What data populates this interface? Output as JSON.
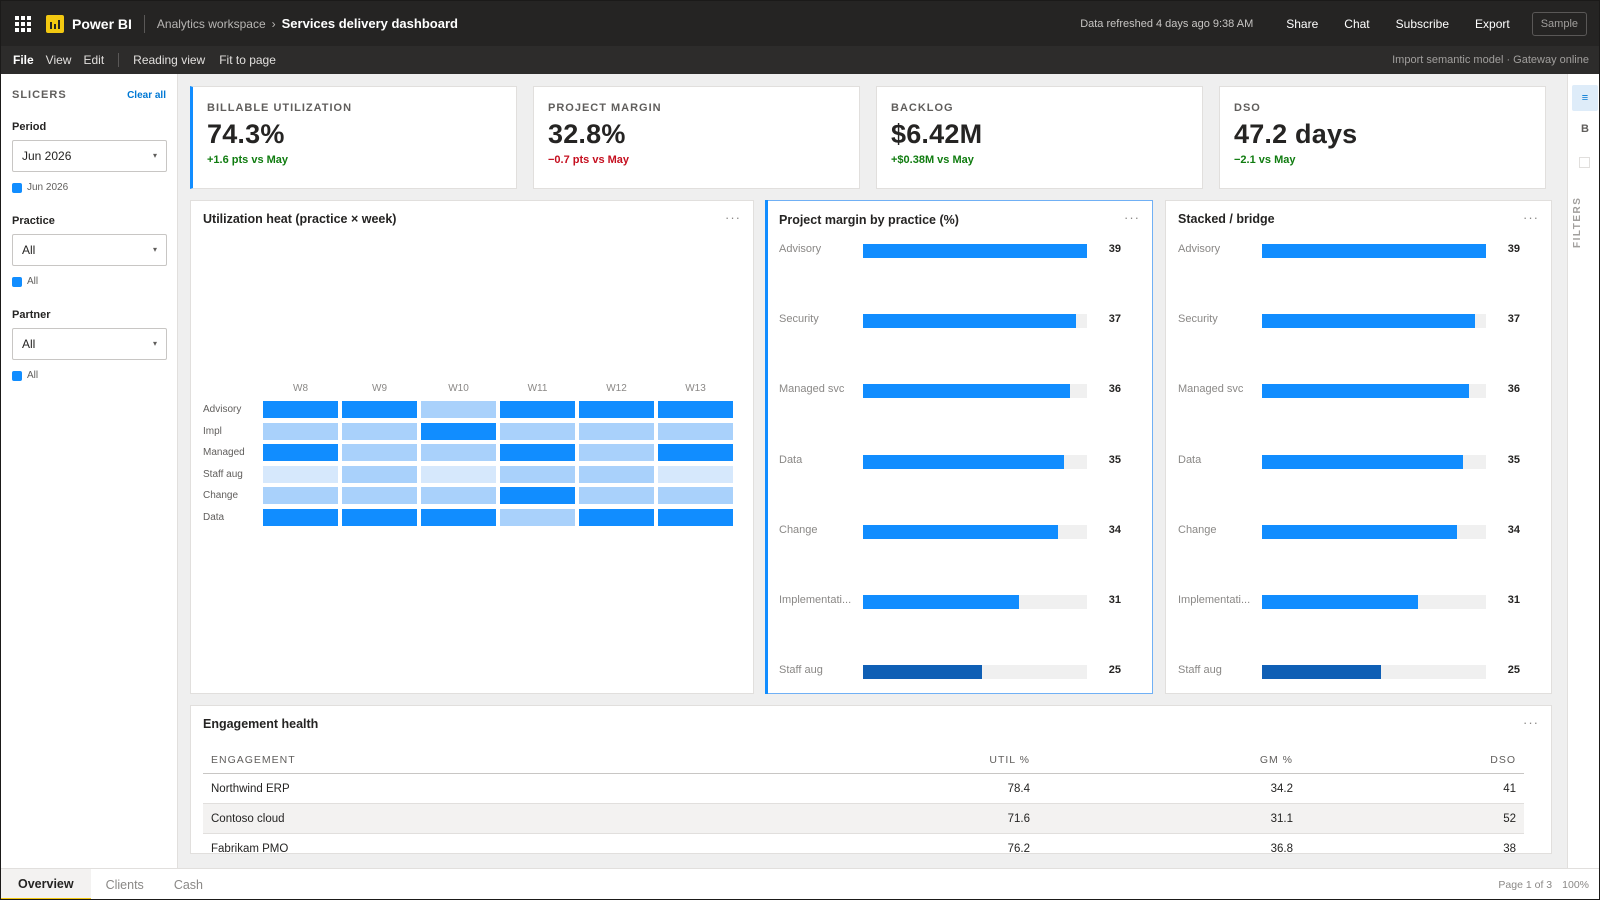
{
  "app": {
    "name": "Power BI",
    "breadcrumb": [
      "Analytics workspace"
    ],
    "breadcrumb_sep": "›",
    "report_title": "Services delivery dashboard",
    "refresh_text": "Data refreshed 4 days ago 9:38 AM",
    "actions": [
      "Share",
      "Chat",
      "Subscribe",
      "Export"
    ],
    "sample_label": "Sample"
  },
  "menu": {
    "items": [
      "File",
      "View",
      "Edit"
    ],
    "view_items": [
      "Reading view",
      "Fit to page"
    ],
    "status": "Import semantic model · Gateway online"
  },
  "slicers": {
    "title": "SLICERS",
    "clear_label": "Clear all",
    "groups": [
      {
        "label": "Period",
        "value": "Jun 2026",
        "chip": "Jun 2026"
      },
      {
        "label": "Practice",
        "value": "All",
        "chip": "All"
      },
      {
        "label": "Partner",
        "value": "All",
        "chip": "All"
      }
    ]
  },
  "kpis": [
    {
      "label": "BILLABLE UTILIZATION",
      "value": "74.3%",
      "delta": "+1.6 pts vs May",
      "trend": "up"
    },
    {
      "label": "PROJECT MARGIN",
      "value": "32.8%",
      "delta": "−0.7 pts vs May",
      "trend": "down"
    },
    {
      "label": "BACKLOG",
      "value": "$6.42M",
      "delta": "+$0.38M vs May",
      "trend": "up"
    },
    {
      "label": "DSO",
      "value": "47.2 days",
      "delta": "−2.1 vs May",
      "trend": "up"
    }
  ],
  "heatmap": {
    "title": "Utilization heat (practice × week)",
    "more": "···",
    "weeks": [
      "W8",
      "W9",
      "W10",
      "W11",
      "W12",
      "W13"
    ],
    "practices": [
      "Advisory",
      "Impl",
      "Managed",
      "Staff aug",
      "Change",
      "Data"
    ],
    "levels": [
      [
        3,
        3,
        1,
        3,
        3,
        3
      ],
      [
        1,
        1,
        3,
        1,
        1,
        1
      ],
      [
        3,
        1,
        1,
        3,
        1,
        3
      ],
      [
        0,
        1,
        0,
        1,
        1,
        0
      ],
      [
        1,
        1,
        1,
        3,
        1,
        1
      ],
      [
        3,
        3,
        3,
        1,
        3,
        3
      ]
    ],
    "level_colors": [
      "#d6e8fc",
      "#a9d1fb",
      "#8bc3fa",
      "#118dff"
    ]
  },
  "margin_chart": {
    "title": "Project margin by practice (%)",
    "more": "···"
  },
  "bridge_chart": {
    "title": "Stacked / bridge",
    "more": "···"
  },
  "chart_data": [
    {
      "type": "bar",
      "title": "Project margin by practice (%)",
      "categories": [
        "Advisory",
        "Security",
        "Managed svc",
        "Data",
        "Change",
        "Implementati...",
        "Staff aug"
      ],
      "values": [
        39,
        37,
        36,
        35,
        34,
        31,
        25
      ],
      "xlim": [
        0,
        39
      ]
    },
    {
      "type": "bar",
      "title": "Stacked / bridge",
      "categories": [
        "Advisory",
        "Security",
        "Managed svc",
        "Data",
        "Change",
        "Implementati...",
        "Staff aug"
      ],
      "values": [
        39,
        37,
        36,
        35,
        34,
        31,
        25
      ],
      "xlim": [
        0,
        39
      ]
    }
  ],
  "colors": {
    "accent": "#118dff",
    "accent_dark": "#0f5fb5",
    "brand": "#f2c811",
    "positive": "#107c10",
    "negative": "#c50f1f"
  },
  "table": {
    "title": "Engagement health",
    "more": "···",
    "columns": [
      "ENGAGEMENT",
      "UTIL %",
      "GM %",
      "DSO"
    ],
    "rows": [
      [
        "Northwind ERP",
        "78.4",
        "34.2",
        "41"
      ],
      [
        "Contoso cloud",
        "71.6",
        "31.1",
        "52"
      ],
      [
        "Fabrikam PMO",
        "76.2",
        "36.8",
        "38"
      ]
    ]
  },
  "rail": {
    "buttons": [
      "≡",
      "B"
    ],
    "filters_label": "FILTERS"
  },
  "pages": {
    "tabs": [
      "Overview",
      "Clients",
      "Cash"
    ],
    "active": "Overview",
    "page_indicator": "Page 1 of 3",
    "zoom": "100%"
  }
}
